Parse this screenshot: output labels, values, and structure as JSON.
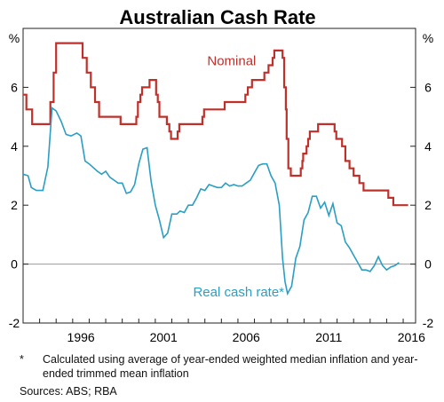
{
  "chart_data": {
    "type": "line",
    "title": "Australian Cash Rate",
    "y_unit_left": "%",
    "y_unit_right": "%",
    "xlim": [
      1993.0,
      2016.75
    ],
    "ylim": [
      -2,
      8
    ],
    "y_ticks": [
      -2,
      0,
      2,
      4,
      6
    ],
    "y_tick_labels": [
      "-2",
      "0",
      "2",
      "4",
      "6"
    ],
    "x_ticks": [
      1996,
      2001,
      2006,
      2011,
      2016
    ],
    "x_tick_labels": [
      "1996",
      "2001",
      "2006",
      "2011",
      "2016"
    ],
    "grid": false,
    "zero_line": true,
    "series": [
      {
        "name": "Nominal",
        "label_position": "above series, near 2007",
        "color": "#c0302a",
        "step": true,
        "points": [
          [
            1993.0,
            5.75
          ],
          [
            1993.2,
            5.25
          ],
          [
            1993.55,
            4.75
          ],
          [
            1994.65,
            5.5
          ],
          [
            1994.85,
            6.5
          ],
          [
            1995.0,
            7.5
          ],
          [
            1996.6,
            7.0
          ],
          [
            1996.85,
            6.5
          ],
          [
            1997.1,
            6.0
          ],
          [
            1997.35,
            5.5
          ],
          [
            1997.6,
            5.0
          ],
          [
            1998.9,
            4.75
          ],
          [
            1999.85,
            5.0
          ],
          [
            1999.95,
            5.5
          ],
          [
            2000.1,
            5.75
          ],
          [
            2000.2,
            6.0
          ],
          [
            2000.65,
            6.25
          ],
          [
            2001.05,
            5.75
          ],
          [
            2001.15,
            5.5
          ],
          [
            2001.25,
            5.0
          ],
          [
            2001.7,
            4.75
          ],
          [
            2001.85,
            4.5
          ],
          [
            2001.95,
            4.25
          ],
          [
            2002.35,
            4.5
          ],
          [
            2002.45,
            4.75
          ],
          [
            2003.85,
            5.0
          ],
          [
            2003.95,
            5.25
          ],
          [
            2005.2,
            5.5
          ],
          [
            2006.45,
            5.75
          ],
          [
            2006.6,
            6.0
          ],
          [
            2006.85,
            6.25
          ],
          [
            2007.6,
            6.5
          ],
          [
            2007.85,
            6.75
          ],
          [
            2008.1,
            7.0
          ],
          [
            2008.2,
            7.25
          ],
          [
            2008.7,
            7.0
          ],
          [
            2008.8,
            6.0
          ],
          [
            2008.9,
            5.25
          ],
          [
            2008.95,
            4.25
          ],
          [
            2009.05,
            3.25
          ],
          [
            2009.2,
            3.0
          ],
          [
            2009.8,
            3.25
          ],
          [
            2009.9,
            3.5
          ],
          [
            2009.95,
            3.75
          ],
          [
            2010.15,
            4.0
          ],
          [
            2010.25,
            4.25
          ],
          [
            2010.35,
            4.5
          ],
          [
            2010.85,
            4.75
          ],
          [
            2011.85,
            4.5
          ],
          [
            2011.95,
            4.25
          ],
          [
            2012.3,
            4.0
          ],
          [
            2012.5,
            3.5
          ],
          [
            2012.75,
            3.25
          ],
          [
            2013.0,
            3.0
          ],
          [
            2013.35,
            2.75
          ],
          [
            2013.6,
            2.5
          ],
          [
            2015.1,
            2.25
          ],
          [
            2015.4,
            2.0
          ],
          [
            2016.3,
            2.0
          ]
        ]
      },
      {
        "name": "Real cash rate*",
        "label_position": "below series, near 2006",
        "color": "#2a9ec4",
        "step": false,
        "points": [
          [
            1993.0,
            3.05
          ],
          [
            1993.3,
            3.0
          ],
          [
            1993.5,
            2.6
          ],
          [
            1993.8,
            2.5
          ],
          [
            1994.2,
            2.5
          ],
          [
            1994.5,
            3.3
          ],
          [
            1994.75,
            5.3
          ],
          [
            1995.0,
            5.2
          ],
          [
            1995.3,
            4.85
          ],
          [
            1995.6,
            4.4
          ],
          [
            1995.9,
            4.35
          ],
          [
            1996.25,
            4.45
          ],
          [
            1996.5,
            4.35
          ],
          [
            1996.75,
            3.5
          ],
          [
            1997.0,
            3.4
          ],
          [
            1997.5,
            3.15
          ],
          [
            1997.75,
            3.05
          ],
          [
            1998.0,
            3.15
          ],
          [
            1998.25,
            2.95
          ],
          [
            1998.5,
            2.85
          ],
          [
            1998.75,
            2.75
          ],
          [
            1999.0,
            2.75
          ],
          [
            1999.25,
            2.4
          ],
          [
            1999.5,
            2.45
          ],
          [
            1999.75,
            2.7
          ],
          [
            2000.0,
            3.4
          ],
          [
            2000.25,
            3.9
          ],
          [
            2000.5,
            3.95
          ],
          [
            2000.75,
            2.8
          ],
          [
            2001.0,
            2.0
          ],
          [
            2001.25,
            1.5
          ],
          [
            2001.5,
            0.9
          ],
          [
            2001.75,
            1.05
          ],
          [
            2002.0,
            1.7
          ],
          [
            2002.3,
            1.7
          ],
          [
            2002.5,
            1.8
          ],
          [
            2002.75,
            1.75
          ],
          [
            2003.0,
            2.0
          ],
          [
            2003.25,
            2.0
          ],
          [
            2003.5,
            2.25
          ],
          [
            2003.75,
            2.55
          ],
          [
            2004.0,
            2.5
          ],
          [
            2004.25,
            2.7
          ],
          [
            2004.5,
            2.65
          ],
          [
            2004.75,
            2.6
          ],
          [
            2005.0,
            2.6
          ],
          [
            2005.25,
            2.75
          ],
          [
            2005.5,
            2.65
          ],
          [
            2005.75,
            2.7
          ],
          [
            2006.0,
            2.65
          ],
          [
            2006.25,
            2.65
          ],
          [
            2006.5,
            2.75
          ],
          [
            2006.75,
            2.85
          ],
          [
            2007.0,
            3.1
          ],
          [
            2007.25,
            3.35
          ],
          [
            2007.5,
            3.4
          ],
          [
            2007.75,
            3.4
          ],
          [
            2008.0,
            3.0
          ],
          [
            2008.25,
            2.75
          ],
          [
            2008.5,
            2.0
          ],
          [
            2008.7,
            0.2
          ],
          [
            2008.85,
            -0.6
          ],
          [
            2009.0,
            -1.0
          ],
          [
            2009.25,
            -0.75
          ],
          [
            2009.5,
            0.2
          ],
          [
            2009.75,
            0.6
          ],
          [
            2010.0,
            1.5
          ],
          [
            2010.25,
            1.75
          ],
          [
            2010.5,
            2.3
          ],
          [
            2010.75,
            2.3
          ],
          [
            2011.0,
            1.9
          ],
          [
            2011.25,
            2.1
          ],
          [
            2011.5,
            1.65
          ],
          [
            2011.75,
            2.05
          ],
          [
            2012.0,
            1.4
          ],
          [
            2012.25,
            1.3
          ],
          [
            2012.5,
            0.75
          ],
          [
            2012.75,
            0.55
          ],
          [
            2013.0,
            0.3
          ],
          [
            2013.25,
            0.05
          ],
          [
            2013.5,
            -0.2
          ],
          [
            2013.75,
            -0.2
          ],
          [
            2014.0,
            -0.25
          ],
          [
            2014.25,
            -0.05
          ],
          [
            2014.5,
            0.25
          ],
          [
            2014.75,
            -0.05
          ],
          [
            2015.0,
            -0.2
          ],
          [
            2015.25,
            -0.1
          ],
          [
            2015.5,
            -0.05
          ],
          [
            2015.75,
            0.05
          ]
        ]
      }
    ],
    "footnote_mark": "*",
    "footnote": "Calculated using average of year-ended weighted median inflation and year-ended trimmed mean inflation",
    "sources": "Sources:   ABS; RBA"
  },
  "colors": {
    "axis": "#222222",
    "zero_line": "#999999",
    "nominal": "#c0302a",
    "real": "#2a9ec4"
  }
}
